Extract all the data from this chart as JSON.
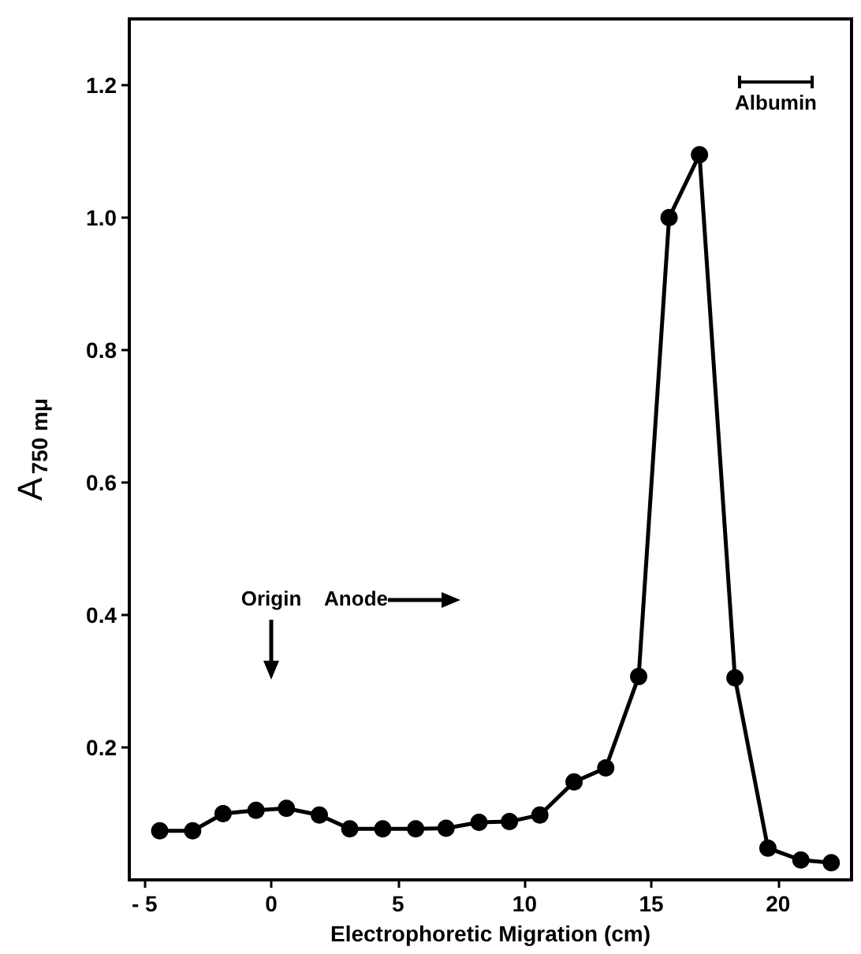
{
  "chart_data": {
    "type": "line",
    "xlabel": "Electrophoretic Migration (cm)",
    "ylabel": "A$_{750 mμ}$",
    "x": [
      -4.4,
      -3.1,
      -1.9,
      -0.6,
      0.6,
      1.9,
      3.1,
      4.4,
      5.7,
      6.9,
      8.2,
      9.4,
      10.6,
      11.95,
      13.2,
      14.5,
      15.7,
      16.9,
      18.3,
      19.6,
      20.9,
      22.1
    ],
    "values": [
      0.074,
      0.074,
      0.1,
      0.105,
      0.108,
      0.098,
      0.077,
      0.077,
      0.077,
      0.078,
      0.087,
      0.088,
      0.098,
      0.148,
      0.169,
      0.307,
      1.0,
      1.095,
      0.305,
      0.048,
      0.03,
      0.026
    ],
    "color": "#000000",
    "marker": "circle",
    "line_style": "solid",
    "xlim": [
      -5.6,
      22.9
    ],
    "xticks": [
      {
        "value": -5,
        "label": "- 5"
      },
      0,
      5,
      10,
      15,
      20
    ],
    "ylim": [
      0,
      1.3
    ],
    "yticks": [
      0.2,
      0.4,
      0.6,
      0.8,
      {
        "value": 1.0,
        "label": "1.0"
      },
      1.2
    ],
    "annotations": [
      "Origin",
      "Anode",
      "Albumin"
    ]
  }
}
